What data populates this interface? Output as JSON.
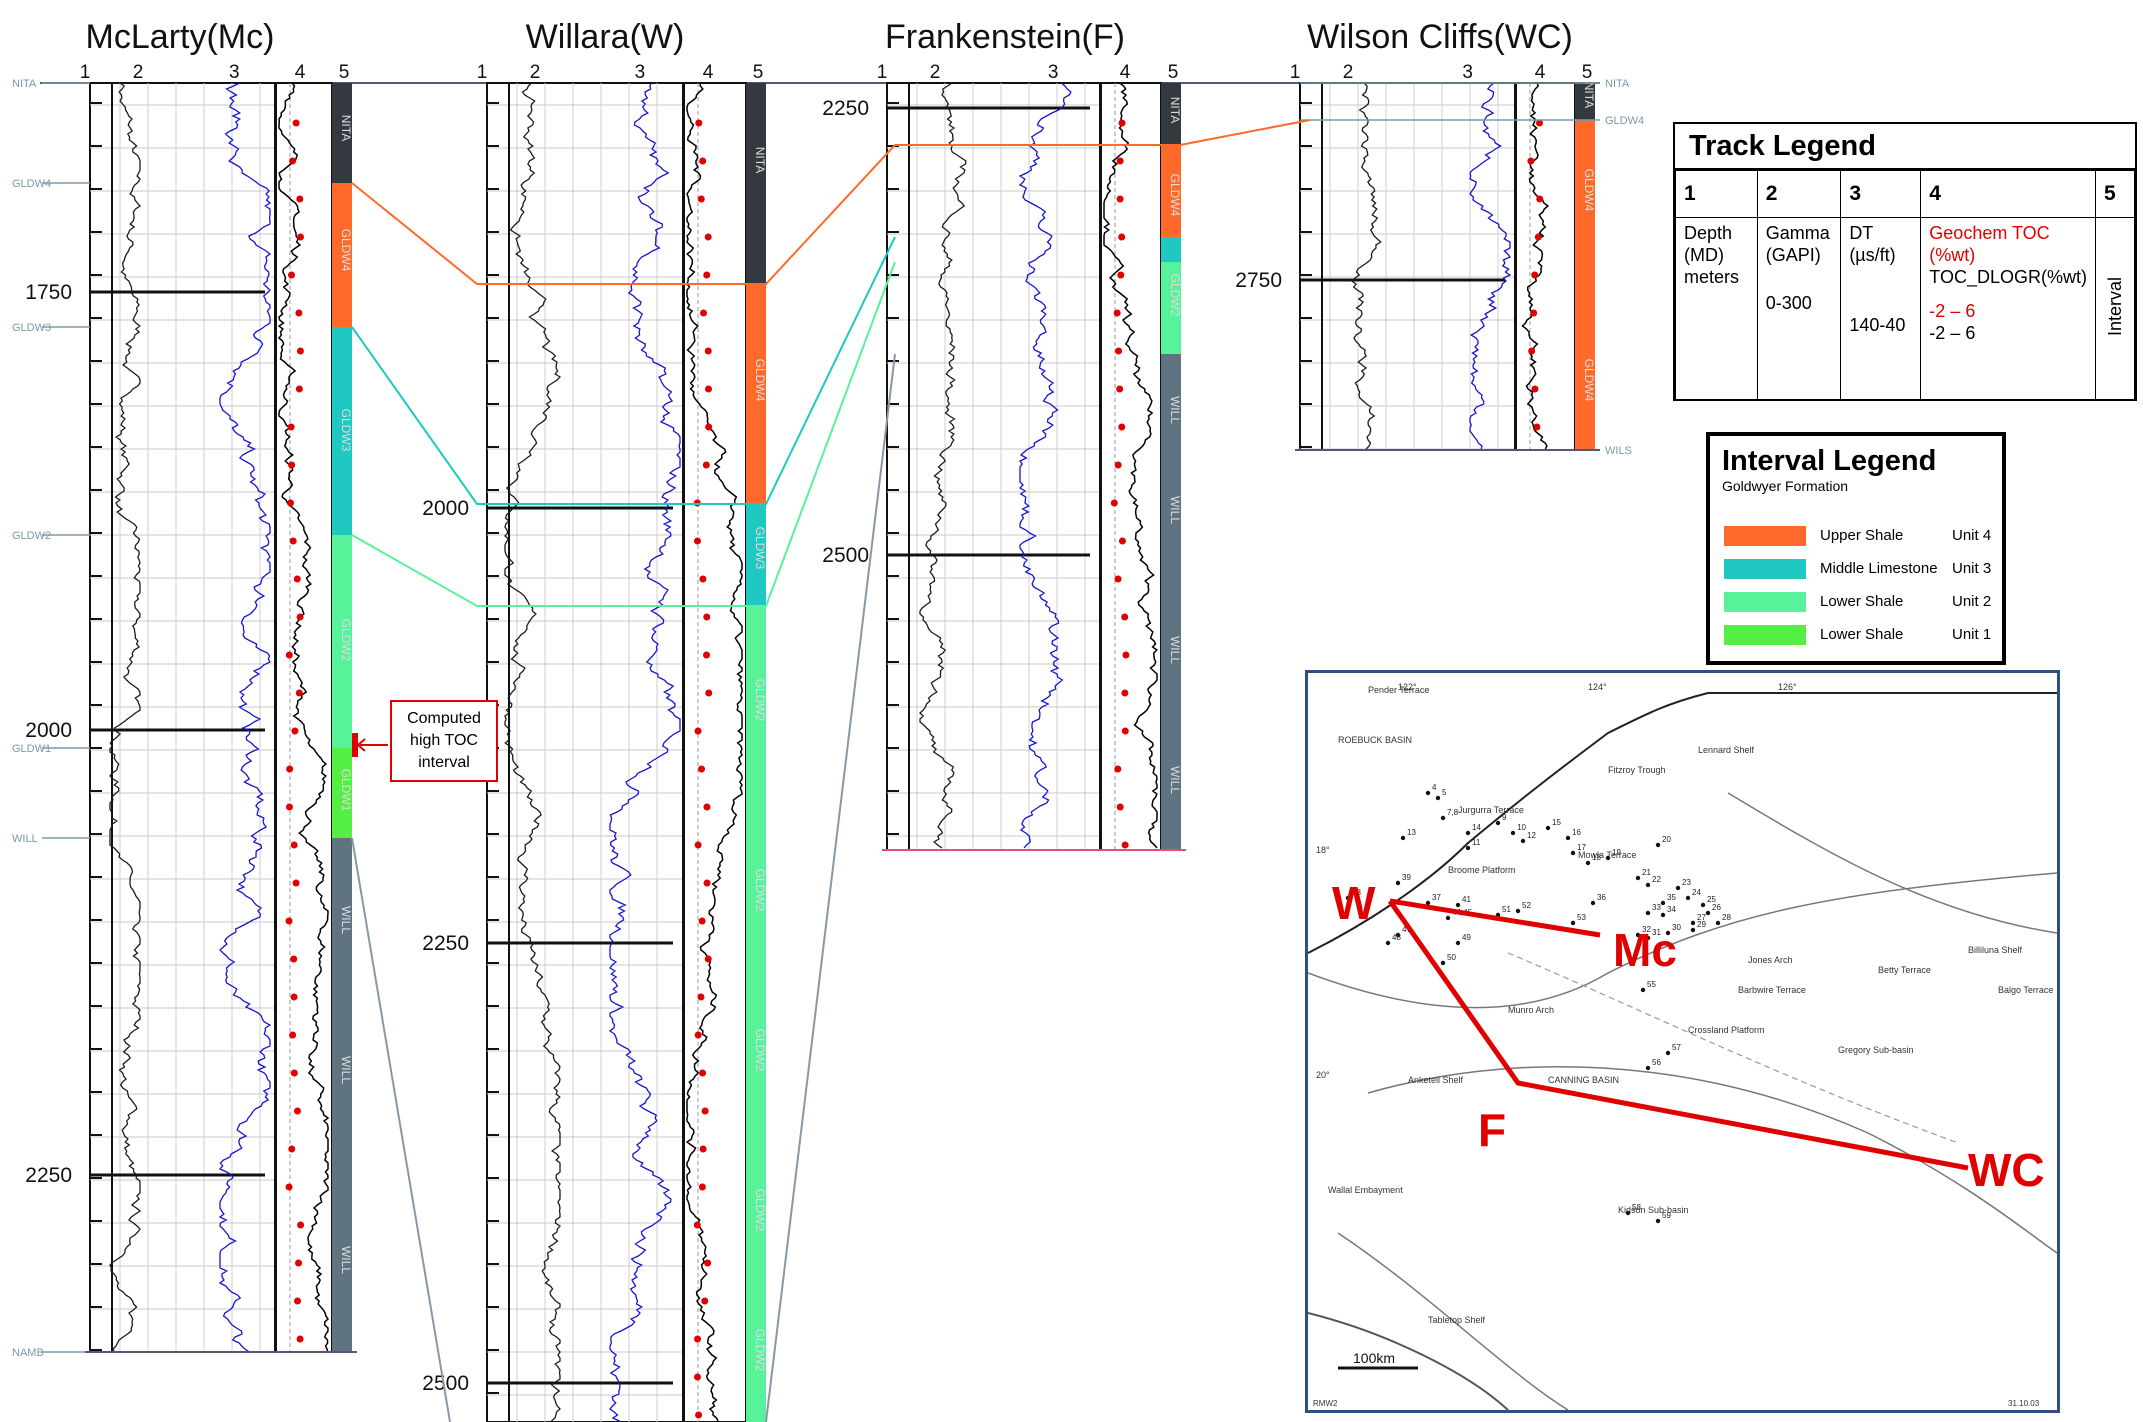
{
  "wells": [
    {
      "name": "McLarty(Mc)",
      "track_numbers": [
        "1",
        "2",
        "3",
        "4",
        "5"
      ],
      "depth_labels": [
        "1750",
        "2000",
        "2250"
      ],
      "interval_labels": [
        "NITA",
        "GLDW4",
        "GLDW3",
        "GLDW2",
        "GLDW1",
        "WILL",
        "WILL",
        "WILL"
      ],
      "marker_labels": [
        "NITA",
        "GLDW4",
        "GLDW3",
        "GLDW2",
        "GLDW1",
        "WILL",
        "NAMB"
      ]
    },
    {
      "name": "Willara(W)",
      "track_numbers": [
        "1",
        "2",
        "3",
        "4",
        "5"
      ],
      "depth_labels": [
        "2000",
        "2250",
        "2500"
      ],
      "interval_labels": [
        "NITA",
        "GLDW4",
        "GLDW3",
        "GLDW2",
        "GLDW2",
        "GLDW2",
        "GLDW2",
        "GLDW2"
      ],
      "marker_labels": []
    },
    {
      "name": "Frankenstein(F)",
      "track_numbers": [
        "1",
        "2",
        "3",
        "4",
        "5"
      ],
      "depth_labels": [
        "2250",
        "2500"
      ],
      "interval_labels": [
        "NITA",
        "GLDW4",
        "GLDW2",
        "WILL",
        "WILL",
        "WILL",
        "WILL"
      ],
      "marker_labels": []
    },
    {
      "name": "Wilson Cliffs(WC)",
      "track_numbers": [
        "1",
        "2",
        "3",
        "4",
        "5"
      ],
      "depth_labels": [
        "2750"
      ],
      "interval_labels": [
        "NITA",
        "GLDW4",
        "GLDW4"
      ],
      "marker_labels": [
        "NITA",
        "GLDW4",
        "WILS"
      ]
    }
  ],
  "callout": {
    "text": "Computed high TOC interval"
  },
  "track_legend": {
    "title": "Track Legend",
    "headers": [
      "1",
      "2",
      "3",
      "4",
      "5"
    ],
    "col1": "Depth (MD) meters",
    "col2_name": "Gamma (GAPI)",
    "col2_range": "0-300",
    "col3_name": "DT (µs/ft)",
    "col3_range": "140-40",
    "col4_geochem": "Geochem TOC (%wt)",
    "col4_dlo": "TOC_DLOGR(%wt)",
    "col4_range_red": "-2 – 6",
    "col4_range_black": "-2 – 6",
    "col5": "Interval"
  },
  "interval_legend": {
    "title": "Interval Legend",
    "subtitle": "Goldwyer Formation",
    "items": [
      {
        "label": "Upper Shale",
        "unit": "Unit 4",
        "color": "#ff6a2b"
      },
      {
        "label": "Middle Limestone",
        "unit": "Unit 3",
        "color": "#1fc8c0"
      },
      {
        "label": "Lower Shale",
        "unit": "Unit 2",
        "color": "#57f29a"
      },
      {
        "label": "Lower Shale",
        "unit": "Unit 1",
        "color": "#55ee44"
      }
    ]
  },
  "map": {
    "well_labels": [
      "W",
      "Mc",
      "F",
      "WC"
    ],
    "place_labels": [
      "ROEBUCK BASIN",
      "Pender Terrace",
      "Fitzroy Trough",
      "Lennard Shelf",
      "Jurgurra Terrace",
      "Broome Platform",
      "Mowla Terrace",
      "Jones Arch",
      "Munro Arch",
      "CANNING BASIN",
      "Crossland Platform",
      "Kidson Sub-basin",
      "Anketell Shelf",
      "Barbwire Terrace",
      "Gregory Sub-basin",
      "Billiluna Shelf",
      "Balgo Terrace",
      "Betty Terrace",
      "Tabletop Shelf",
      "Wallal Embayment"
    ],
    "longitude_labels": [
      "122°",
      "124°",
      "126°"
    ],
    "latitude_labels": [
      "18°",
      "20°"
    ],
    "well_numbers": [
      "4",
      "5",
      "7,8",
      "9",
      "10",
      "12",
      "11",
      "13",
      "14",
      "15",
      "16",
      "17",
      "18",
      "19",
      "20",
      "21",
      "22",
      "23",
      "24",
      "25",
      "26",
      "27",
      "28",
      "29",
      "30",
      "31",
      "32",
      "33",
      "34",
      "35",
      "36",
      "37",
      "38",
      "39",
      "41",
      "44,45",
      "47",
      "48",
      "49",
      "50",
      "51",
      "52",
      "53",
      "55",
      "56",
      "57",
      "58",
      "59",
      "60"
    ],
    "scale_label": "100km",
    "footer_left": "RMW2",
    "footer_right": "31.10.03"
  },
  "colors": {
    "unit4": "#ff6a2b",
    "unit3": "#1fc8c0",
    "unit2": "#57f29a",
    "unit1": "#55ee44",
    "nita": "#33393f",
    "will": "#5f7480",
    "gamma_curve": "#1a1a1a",
    "dt_curve": "#1515d0",
    "toc": "#e00000",
    "section_line": "#e00000",
    "well_label": "#e00000",
    "marker_gray": "#7a9aa8"
  }
}
